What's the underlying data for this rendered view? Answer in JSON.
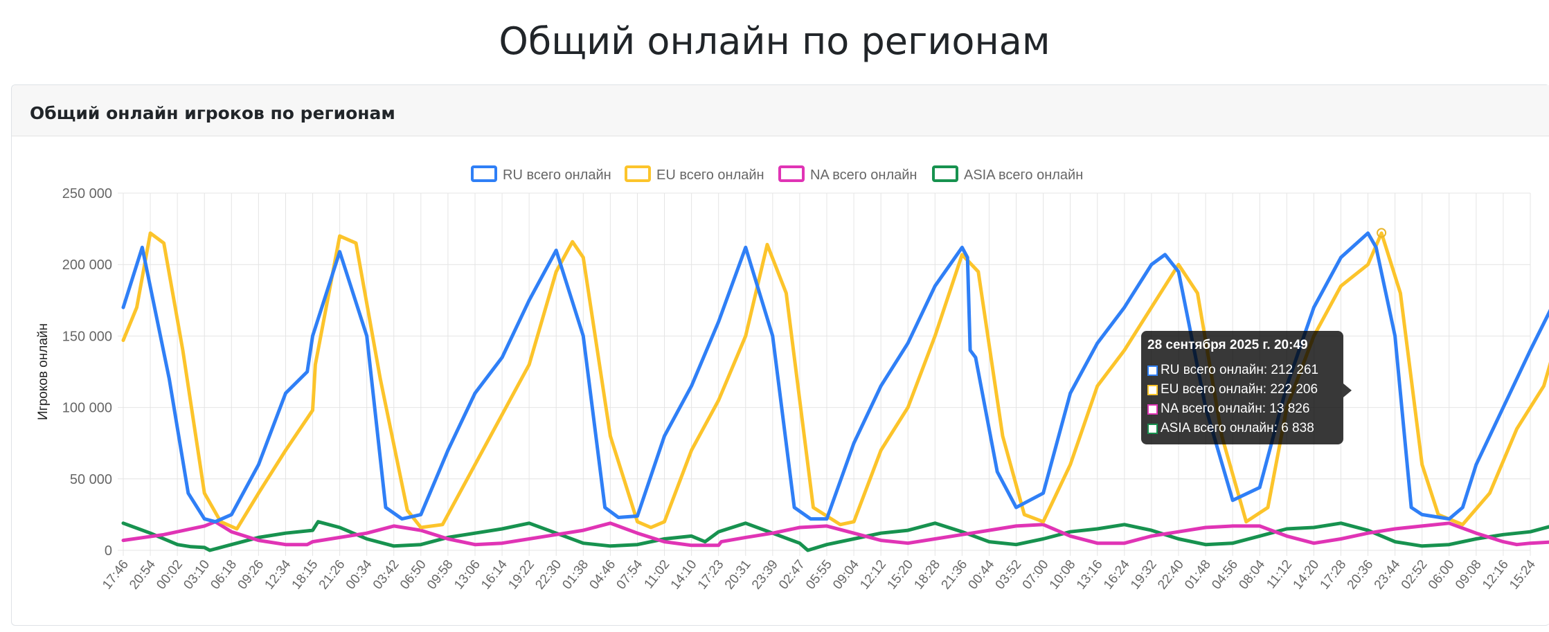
{
  "page": {
    "title": "Общий онлайн по регионам"
  },
  "card": {
    "title": "Общий онлайн игроков по регионам"
  },
  "tooltip": {
    "title": "28 сентября 2025 г. 20:49",
    "rows": [
      {
        "label": "RU всего онлайн: 212 261",
        "color": "#2f7ff6"
      },
      {
        "label": "EU всего онлайн: 222 206",
        "color": "#fcc42b"
      },
      {
        "label": "NA всего онлайн: 13 826",
        "color": "#e034b5"
      },
      {
        "label": "ASIA всего онлайн: 6 838",
        "color": "#17924f"
      }
    ]
  },
  "chart_data": {
    "type": "line",
    "ylabel": "Игроков онлайн",
    "ylim": [
      0,
      250000
    ],
    "y_ticks": [
      "0",
      "50 000",
      "100 000",
      "150 000",
      "200 000",
      "250 000"
    ],
    "grid": true,
    "legend_position": "top-center",
    "x_tick_labels": [
      "17:46",
      "20:54",
      "00:02",
      "03:10",
      "06:18",
      "09:26",
      "12:34",
      "18:15",
      "21:26",
      "00:34",
      "03:42",
      "06:50",
      "09:58",
      "13:06",
      "16:14",
      "19:22",
      "22:30",
      "01:38",
      "04:46",
      "07:54",
      "11:02",
      "14:10",
      "17:23",
      "20:31",
      "23:39",
      "02:47",
      "05:55",
      "09:04",
      "12:12",
      "15:20",
      "18:28",
      "21:36",
      "00:44",
      "03:52",
      "07:00",
      "10:08",
      "13:16",
      "16:24",
      "19:32",
      "22:40",
      "01:48",
      "04:56",
      "08:04",
      "11:12",
      "14:20",
      "17:28",
      "20:36",
      "23:44",
      "02:52",
      "06:00",
      "09:08",
      "12:16",
      "15:24"
    ],
    "series": [
      {
        "name": "RU всего онлайн",
        "color": "#2f7ff6",
        "points": [
          [
            0,
            170000
          ],
          [
            0.7,
            212000
          ],
          [
            1.7,
            120000
          ],
          [
            2.4,
            40000
          ],
          [
            3,
            22000
          ],
          [
            3.4,
            20000
          ],
          [
            4,
            25000
          ],
          [
            5,
            60000
          ],
          [
            6,
            110000
          ],
          [
            6.8,
            125000
          ],
          [
            7,
            150000
          ],
          [
            8,
            209000
          ],
          [
            9,
            150000
          ],
          [
            9.7,
            30000
          ],
          [
            10.3,
            22000
          ],
          [
            11,
            25000
          ],
          [
            12,
            70000
          ],
          [
            13,
            110000
          ],
          [
            14,
            135000
          ],
          [
            15,
            175000
          ],
          [
            16,
            210000
          ],
          [
            17,
            150000
          ],
          [
            17.8,
            30000
          ],
          [
            18.3,
            23000
          ],
          [
            19,
            24000
          ],
          [
            20,
            80000
          ],
          [
            21,
            115000
          ],
          [
            22,
            160000
          ],
          [
            23,
            212000
          ],
          [
            24,
            150000
          ],
          [
            24.8,
            30000
          ],
          [
            25.4,
            22000
          ],
          [
            26,
            22000
          ],
          [
            27,
            75000
          ],
          [
            28,
            115000
          ],
          [
            29,
            145000
          ],
          [
            30,
            185000
          ],
          [
            31,
            212000
          ],
          [
            31.2,
            205000
          ],
          [
            31.3,
            140000
          ],
          [
            31.5,
            135000
          ],
          [
            32.3,
            55000
          ],
          [
            33,
            30000
          ],
          [
            34,
            40000
          ],
          [
            35,
            110000
          ],
          [
            36,
            145000
          ],
          [
            37,
            170000
          ],
          [
            38,
            200000
          ],
          [
            38.5,
            207000
          ],
          [
            39,
            195000
          ],
          [
            40,
            100000
          ],
          [
            41,
            35000
          ],
          [
            42,
            44000
          ],
          [
            43,
            115000
          ],
          [
            44,
            170000
          ],
          [
            45,
            205000
          ],
          [
            46,
            222000
          ],
          [
            46.3,
            212000
          ],
          [
            47,
            150000
          ],
          [
            47.6,
            30000
          ],
          [
            48,
            25000
          ],
          [
            49,
            22000
          ],
          [
            49.5,
            30000
          ],
          [
            50,
            60000
          ],
          [
            51,
            100000
          ],
          [
            52,
            140000
          ],
          [
            53,
            178000
          ]
        ]
      },
      {
        "name": "EU всего онлайн",
        "color": "#fcc42b",
        "points": [
          [
            0,
            147000
          ],
          [
            0.5,
            170000
          ],
          [
            1,
            222000
          ],
          [
            1.5,
            215000
          ],
          [
            2.2,
            140000
          ],
          [
            3,
            40000
          ],
          [
            3.6,
            20000
          ],
          [
            4.2,
            15000
          ],
          [
            5,
            40000
          ],
          [
            6,
            70000
          ],
          [
            7,
            98000
          ],
          [
            7.1,
            130000
          ],
          [
            8,
            220000
          ],
          [
            8.6,
            215000
          ],
          [
            9.5,
            120000
          ],
          [
            10.5,
            28000
          ],
          [
            11,
            16000
          ],
          [
            11.8,
            18000
          ],
          [
            13,
            60000
          ],
          [
            14,
            95000
          ],
          [
            15,
            130000
          ],
          [
            16,
            195000
          ],
          [
            16.6,
            216000
          ],
          [
            17,
            205000
          ],
          [
            18,
            80000
          ],
          [
            19,
            20000
          ],
          [
            19.5,
            16000
          ],
          [
            20,
            20000
          ],
          [
            21,
            70000
          ],
          [
            22,
            105000
          ],
          [
            23,
            150000
          ],
          [
            23.8,
            214000
          ],
          [
            24.5,
            180000
          ],
          [
            25.5,
            30000
          ],
          [
            26.5,
            18000
          ],
          [
            27,
            20000
          ],
          [
            28,
            70000
          ],
          [
            29,
            100000
          ],
          [
            30,
            150000
          ],
          [
            31,
            207000
          ],
          [
            31.6,
            195000
          ],
          [
            32.5,
            80000
          ],
          [
            33.3,
            25000
          ],
          [
            34,
            20000
          ],
          [
            35,
            60000
          ],
          [
            36,
            115000
          ],
          [
            37,
            140000
          ],
          [
            38,
            170000
          ],
          [
            39,
            200000
          ],
          [
            39.7,
            180000
          ],
          [
            40.6,
            80000
          ],
          [
            41.5,
            20000
          ],
          [
            42.3,
            30000
          ],
          [
            43,
            100000
          ],
          [
            44,
            150000
          ],
          [
            45,
            185000
          ],
          [
            46,
            200000
          ],
          [
            46.5,
            222000
          ],
          [
            47.2,
            180000
          ],
          [
            48,
            60000
          ],
          [
            48.6,
            25000
          ],
          [
            49.5,
            18000
          ],
          [
            50.5,
            40000
          ],
          [
            51.5,
            85000
          ],
          [
            52.5,
            115000
          ],
          [
            53,
            148000
          ]
        ]
      },
      {
        "name": "NA всего онлайн",
        "color": "#e034b5",
        "points": [
          [
            0,
            7000
          ],
          [
            1.5,
            11000
          ],
          [
            3,
            17000
          ],
          [
            3.4,
            20000
          ],
          [
            4,
            13000
          ],
          [
            5,
            7000
          ],
          [
            6,
            4000
          ],
          [
            6.8,
            4000
          ],
          [
            7,
            6000
          ],
          [
            8,
            9000
          ],
          [
            9,
            12000
          ],
          [
            10,
            17000
          ],
          [
            11,
            14000
          ],
          [
            12,
            8000
          ],
          [
            13,
            4000
          ],
          [
            14,
            5000
          ],
          [
            15,
            8000
          ],
          [
            16,
            11000
          ],
          [
            17,
            14000
          ],
          [
            18,
            19000
          ],
          [
            19,
            12000
          ],
          [
            20,
            6000
          ],
          [
            21,
            3500
          ],
          [
            22,
            3500
          ],
          [
            22.1,
            6000
          ],
          [
            23,
            9000
          ],
          [
            24,
            12000
          ],
          [
            25,
            16000
          ],
          [
            26,
            17000
          ],
          [
            27,
            12000
          ],
          [
            28,
            7000
          ],
          [
            29,
            5000
          ],
          [
            30,
            8000
          ],
          [
            31,
            11000
          ],
          [
            32,
            14000
          ],
          [
            33,
            17000
          ],
          [
            34,
            18000
          ],
          [
            35,
            10000
          ],
          [
            36,
            5000
          ],
          [
            37,
            5000
          ],
          [
            38,
            10000
          ],
          [
            39,
            13000
          ],
          [
            40,
            16000
          ],
          [
            41,
            17000
          ],
          [
            42,
            17000
          ],
          [
            43,
            10000
          ],
          [
            44,
            5000
          ],
          [
            45,
            8000
          ],
          [
            46,
            12000
          ],
          [
            47,
            15000
          ],
          [
            48,
            17000
          ],
          [
            49,
            19000
          ],
          [
            50,
            12000
          ],
          [
            51,
            6000
          ],
          [
            51.5,
            4000
          ],
          [
            52,
            5000
          ],
          [
            53,
            6000
          ]
        ]
      },
      {
        "name": "ASIA всего онлайн",
        "color": "#17924f",
        "points": [
          [
            0,
            19000
          ],
          [
            1,
            12000
          ],
          [
            2,
            4000
          ],
          [
            2.5,
            2500
          ],
          [
            3,
            2000
          ],
          [
            3.2,
            0
          ],
          [
            4,
            4000
          ],
          [
            5,
            9000
          ],
          [
            6,
            12000
          ],
          [
            7,
            14000
          ],
          [
            7.2,
            20000
          ],
          [
            8,
            16000
          ],
          [
            9,
            8000
          ],
          [
            10,
            3000
          ],
          [
            11,
            4000
          ],
          [
            12,
            9000
          ],
          [
            13,
            12000
          ],
          [
            14,
            15000
          ],
          [
            15,
            19000
          ],
          [
            16,
            12000
          ],
          [
            17,
            5000
          ],
          [
            18,
            3000
          ],
          [
            19,
            4000
          ],
          [
            20,
            8000
          ],
          [
            21,
            10000
          ],
          [
            21.5,
            6000
          ],
          [
            22,
            13000
          ],
          [
            23,
            19000
          ],
          [
            24,
            12000
          ],
          [
            25,
            5000
          ],
          [
            25.3,
            0
          ],
          [
            26,
            4000
          ],
          [
            27,
            8000
          ],
          [
            28,
            12000
          ],
          [
            29,
            14000
          ],
          [
            30,
            19000
          ],
          [
            31,
            13000
          ],
          [
            32,
            6000
          ],
          [
            33,
            4000
          ],
          [
            34,
            8000
          ],
          [
            35,
            13000
          ],
          [
            36,
            15000
          ],
          [
            37,
            18000
          ],
          [
            38,
            14000
          ],
          [
            39,
            8000
          ],
          [
            40,
            4000
          ],
          [
            41,
            5000
          ],
          [
            42,
            10000
          ],
          [
            43,
            15000
          ],
          [
            44,
            16000
          ],
          [
            45,
            19000
          ],
          [
            46,
            14000
          ],
          [
            47,
            6000
          ],
          [
            48,
            3000
          ],
          [
            49,
            4000
          ],
          [
            50,
            8000
          ],
          [
            51,
            11000
          ],
          [
            52,
            13000
          ],
          [
            53,
            18000
          ]
        ]
      }
    ],
    "tooltip_marker": {
      "series": "EU всего онлайн",
      "x": 46.5,
      "y": 222206
    }
  }
}
